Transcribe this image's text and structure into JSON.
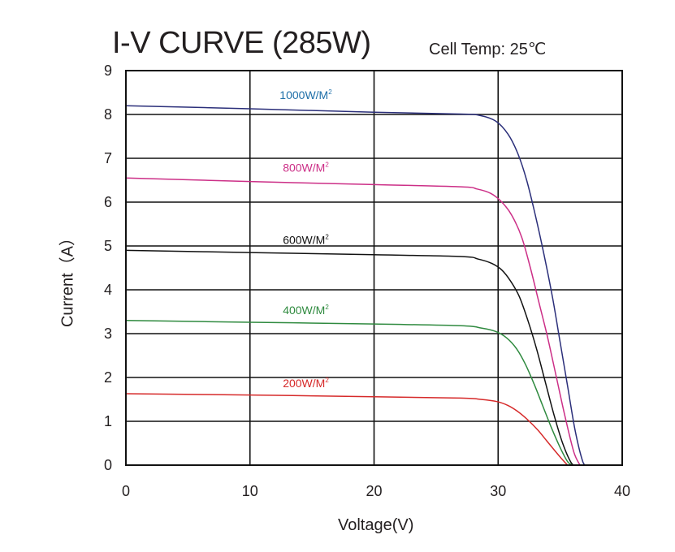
{
  "chart_data": {
    "type": "line",
    "title": "I-V CURVE (285W)",
    "subtitle": "Cell Temp:  25℃",
    "xlabel": "Voltage(V)",
    "ylabel": "Current（A）",
    "xlim": [
      0,
      40
    ],
    "ylim": [
      0,
      9
    ],
    "x_ticks": [
      0,
      10,
      20,
      30,
      40
    ],
    "y_ticks": [
      0,
      1,
      2,
      3,
      4,
      5,
      6,
      7,
      8,
      9
    ],
    "grid": true,
    "series": [
      {
        "name": "1000W/M",
        "superscript": "2",
        "color": "#2b2f7a",
        "label_color": "#1e6fa8",
        "points": [
          [
            0,
            8.2
          ],
          [
            10,
            8.13
          ],
          [
            20,
            8.05
          ],
          [
            27,
            8.01
          ],
          [
            28.5,
            7.98
          ],
          [
            29.8,
            7.85
          ],
          [
            30.8,
            7.55
          ],
          [
            31.6,
            7.1
          ],
          [
            32.3,
            6.5
          ],
          [
            33,
            5.7
          ],
          [
            33.7,
            4.8
          ],
          [
            34.4,
            3.8
          ],
          [
            35,
            2.8
          ],
          [
            35.6,
            1.8
          ],
          [
            36.2,
            0.8
          ],
          [
            36.8,
            0.1
          ],
          [
            37.1,
            0
          ]
        ]
      },
      {
        "name": "800W/M",
        "superscript": "2",
        "color": "#cc2f87",
        "label_color": "#cc2f87",
        "points": [
          [
            0,
            6.55
          ],
          [
            10,
            6.47
          ],
          [
            20,
            6.4
          ],
          [
            27,
            6.35
          ],
          [
            28.3,
            6.3
          ],
          [
            29.4,
            6.2
          ],
          [
            30.3,
            6.0
          ],
          [
            31.1,
            5.7
          ],
          [
            31.9,
            5.2
          ],
          [
            32.6,
            4.5
          ],
          [
            33.3,
            3.7
          ],
          [
            34,
            2.9
          ],
          [
            34.7,
            2.0
          ],
          [
            35.4,
            1.1
          ],
          [
            36.1,
            0.3
          ],
          [
            36.6,
            0
          ]
        ]
      },
      {
        "name": "600W/M",
        "superscript": "2",
        "color": "#111111",
        "label_color": "#111111",
        "points": [
          [
            0,
            4.9
          ],
          [
            10,
            4.85
          ],
          [
            20,
            4.8
          ],
          [
            27,
            4.76
          ],
          [
            28.4,
            4.7
          ],
          [
            29.5,
            4.6
          ],
          [
            30.3,
            4.45
          ],
          [
            31,
            4.2
          ],
          [
            31.7,
            3.85
          ],
          [
            32.4,
            3.3
          ],
          [
            33.1,
            2.65
          ],
          [
            33.8,
            1.9
          ],
          [
            34.5,
            1.15
          ],
          [
            35.2,
            0.5
          ],
          [
            35.9,
            0.05
          ],
          [
            36.3,
            0
          ]
        ]
      },
      {
        "name": "400W/M",
        "superscript": "2",
        "color": "#2f8a3f",
        "label_color": "#2f8a3f",
        "points": [
          [
            0,
            3.3
          ],
          [
            10,
            3.26
          ],
          [
            20,
            3.22
          ],
          [
            27,
            3.18
          ],
          [
            28.6,
            3.13
          ],
          [
            29.8,
            3.05
          ],
          [
            30.7,
            2.9
          ],
          [
            31.5,
            2.65
          ],
          [
            32.2,
            2.3
          ],
          [
            32.9,
            1.85
          ],
          [
            33.6,
            1.35
          ],
          [
            34.3,
            0.85
          ],
          [
            35,
            0.4
          ],
          [
            35.6,
            0.08
          ],
          [
            36,
            0
          ]
        ]
      },
      {
        "name": "200W/M",
        "superscript": "2",
        "color": "#d62a2a",
        "label_color": "#d62a2a",
        "points": [
          [
            0,
            1.63
          ],
          [
            10,
            1.6
          ],
          [
            20,
            1.56
          ],
          [
            27,
            1.53
          ],
          [
            28.6,
            1.5
          ],
          [
            29.9,
            1.45
          ],
          [
            30.8,
            1.36
          ],
          [
            31.6,
            1.22
          ],
          [
            32.4,
            1.03
          ],
          [
            33.2,
            0.8
          ],
          [
            33.9,
            0.56
          ],
          [
            34.6,
            0.32
          ],
          [
            35.2,
            0.12
          ],
          [
            35.6,
            0
          ]
        ]
      }
    ]
  }
}
